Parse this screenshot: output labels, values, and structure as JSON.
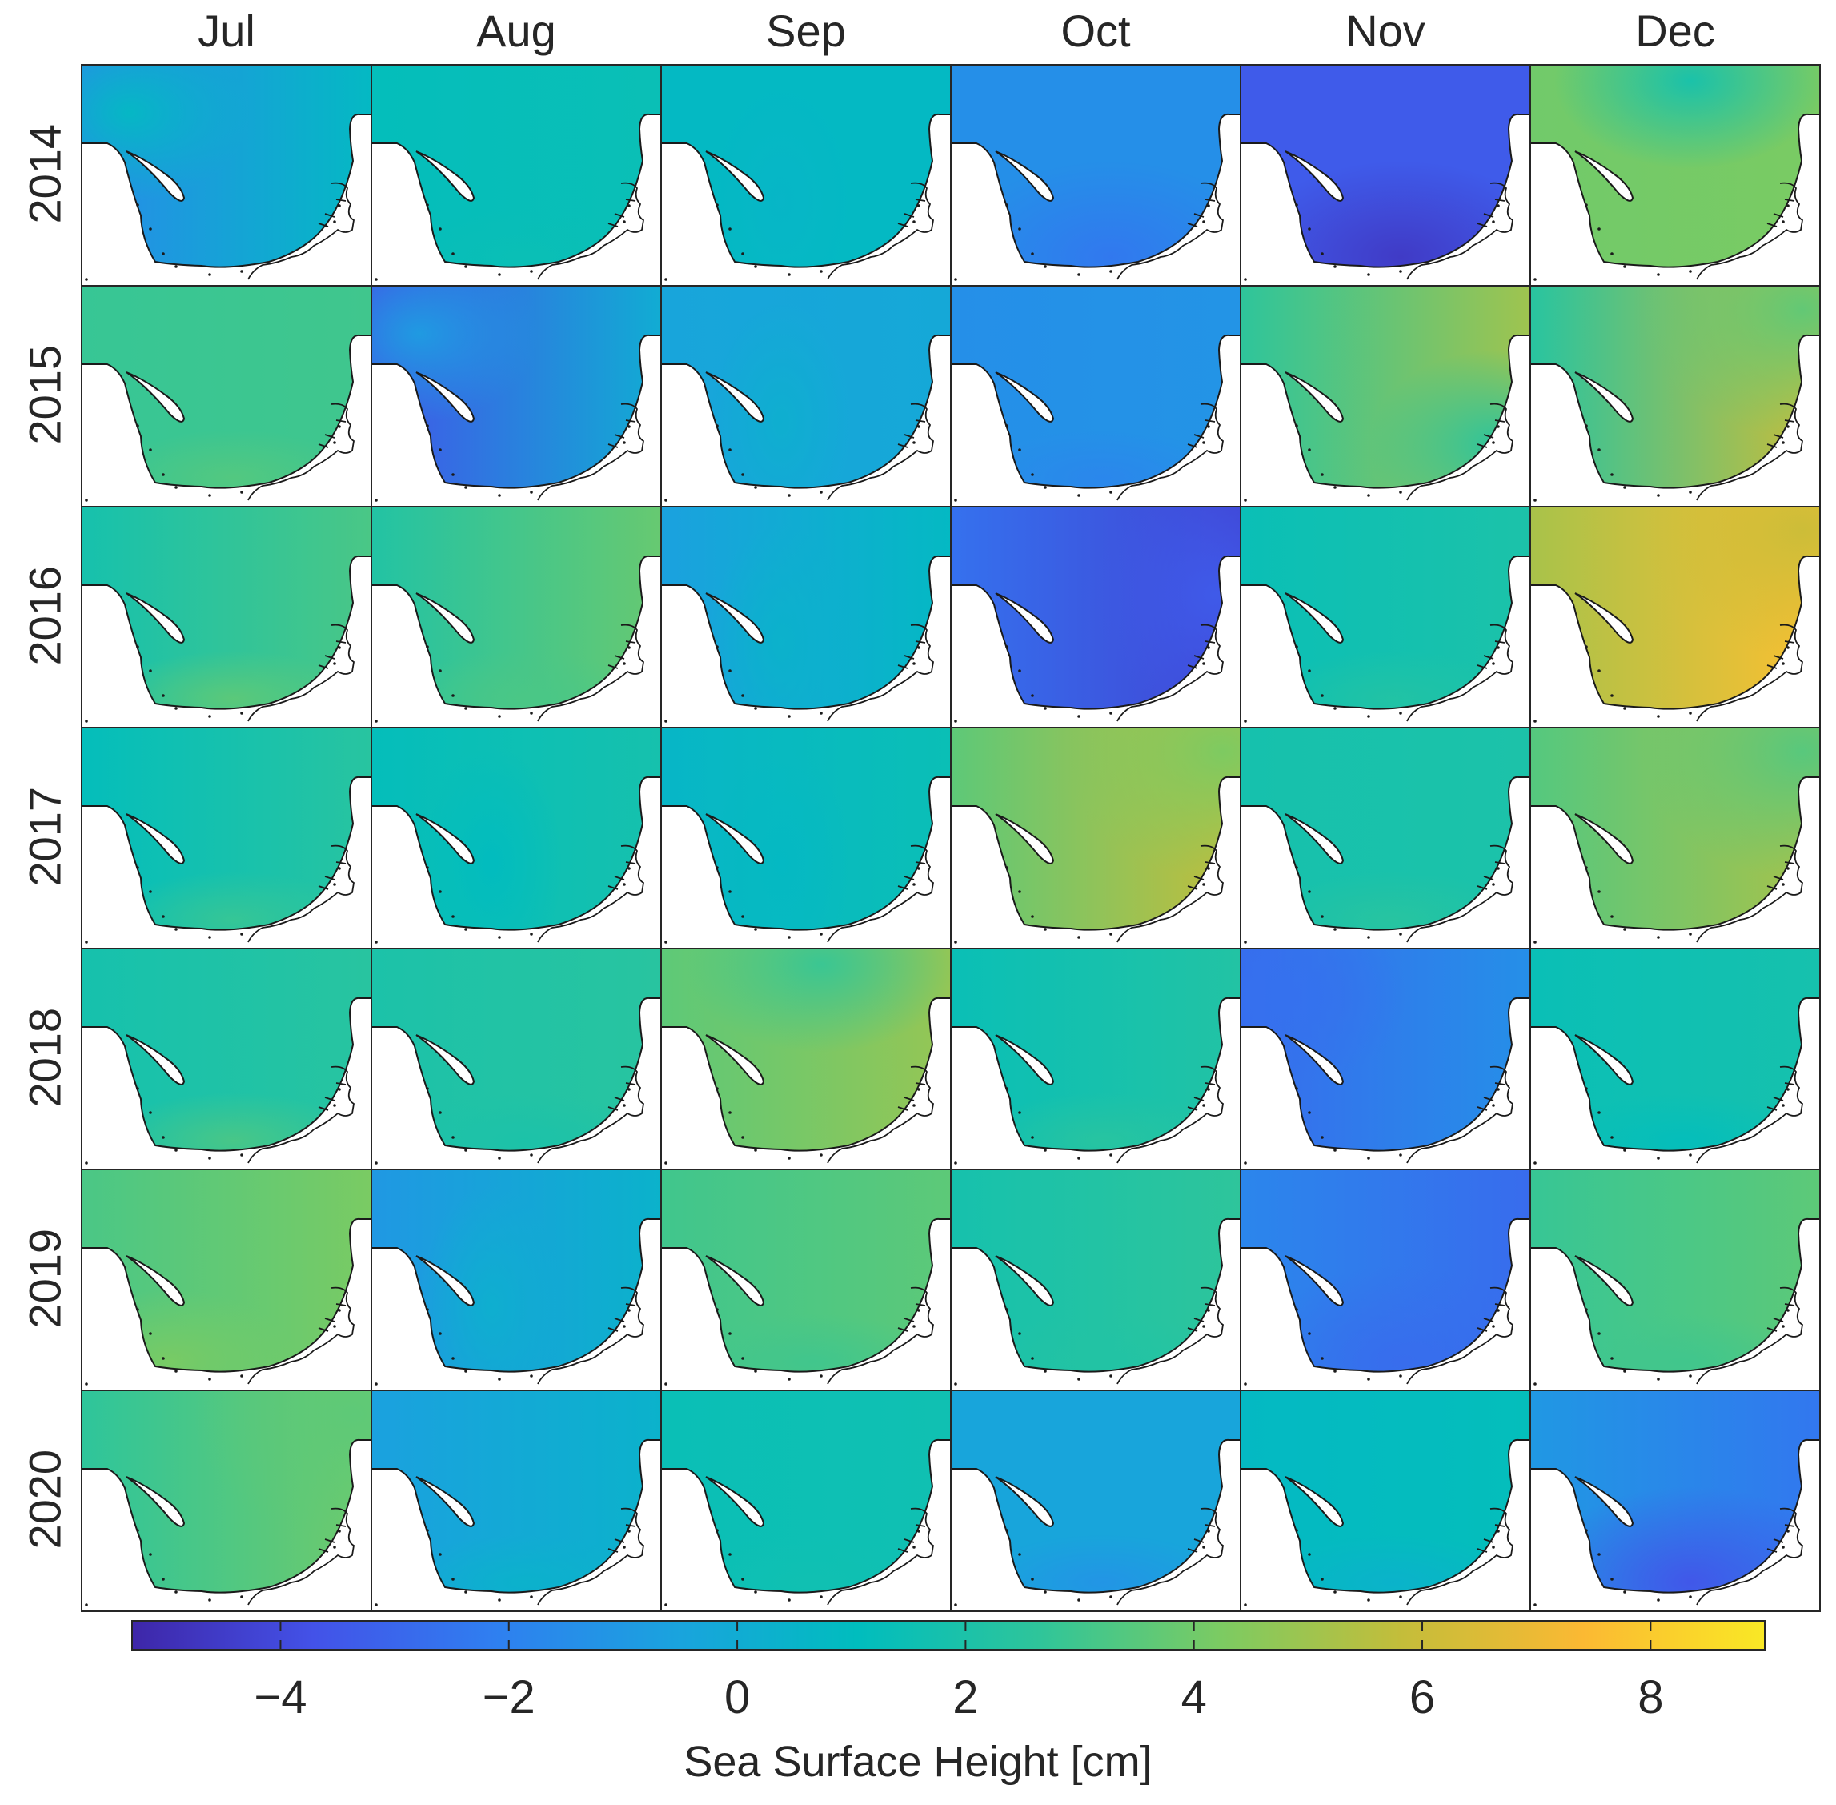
{
  "chart_data": {
    "type": "heatmap",
    "title": "",
    "columns": [
      "Jul",
      "Aug",
      "Sep",
      "Oct",
      "Nov",
      "Dec"
    ],
    "rows": [
      "2014",
      "2015",
      "2016",
      "2017",
      "2018",
      "2019",
      "2020"
    ],
    "panel_content": "Sea surface height map of a coastal bay region, one panel per month and year",
    "colorbar": {
      "label": "Sea Surface Height [cm]",
      "range": [
        -5.3,
        9.0
      ],
      "ticks": [
        -4,
        -2,
        0,
        2,
        4,
        6,
        8
      ],
      "tick_labels": [
        "−4",
        "−2",
        "0",
        "2",
        "4",
        "6",
        "8"
      ],
      "colormap": "parula",
      "stops": [
        "#3e26a8",
        "#4352e8",
        "#2f7ff0",
        "#1aa3de",
        "#00bdbe",
        "#2fc59a",
        "#7ccb62",
        "#c4bd3a",
        "#fbb933",
        "#f9e825"
      ]
    },
    "panels": [
      [
        {
          "w": -1.6,
          "e": 0.8,
          "b": 0.8,
          "p": "NW"
        },
        {
          "w": 1.2,
          "e": 1.4,
          "b": 1.4,
          "p": "flat"
        },
        {
          "w": 0.8,
          "e": 0.8,
          "b": 0.6,
          "p": "trough"
        },
        {
          "w": -1.4,
          "e": -1.4,
          "b": -2.4,
          "p": "S"
        },
        {
          "w": -3.4,
          "e": -3.4,
          "b": -4.6,
          "p": "S"
        },
        {
          "w": 4.0,
          "e": 4.2,
          "b": 1.8,
          "p": "N"
        }
      ],
      [
        {
          "w": 2.8,
          "e": 3.0,
          "b": 3.4,
          "p": "flat"
        },
        {
          "w": -3.6,
          "e": 0.0,
          "b": -0.8,
          "p": "NW"
        },
        {
          "w": -0.4,
          "e": -0.2,
          "b": 0.2,
          "p": "trough"
        },
        {
          "w": -1.4,
          "e": -1.2,
          "b": -1.8,
          "p": "flat"
        },
        {
          "w": 2.6,
          "e": 5.0,
          "b": 2.4,
          "p": "SE"
        },
        {
          "w": 2.4,
          "e": 6.0,
          "b": 3.6,
          "p": "NE"
        }
      ],
      [
        {
          "w": 1.8,
          "e": 3.2,
          "b": 3.6,
          "p": "flat"
        },
        {
          "w": 2.2,
          "e": 3.8,
          "b": 3.2,
          "p": "flat"
        },
        {
          "w": -0.6,
          "e": 0.8,
          "b": 0.4,
          "p": "trough"
        },
        {
          "w": -2.6,
          "e": -4.2,
          "b": -3.4,
          "p": "E"
        },
        {
          "w": 1.4,
          "e": 2.0,
          "b": 2.2,
          "p": "flat"
        },
        {
          "w": 5.2,
          "e": 7.6,
          "b": 6.0,
          "p": "NE"
        }
      ],
      [
        {
          "w": 1.2,
          "e": 2.4,
          "b": 2.8,
          "p": "flat"
        },
        {
          "w": 1.2,
          "e": 1.8,
          "b": 1.0,
          "p": "trough"
        },
        {
          "w": 0.6,
          "e": 1.4,
          "b": 0.8,
          "p": "trough"
        },
        {
          "w": 3.6,
          "e": 5.8,
          "b": 4.2,
          "p": "NE"
        },
        {
          "w": 1.8,
          "e": 2.0,
          "b": 2.4,
          "p": "flat"
        },
        {
          "w": 3.4,
          "e": 5.2,
          "b": 3.4,
          "p": "NE"
        }
      ],
      [
        {
          "w": 1.8,
          "e": 2.4,
          "b": 3.2,
          "p": "flat"
        },
        {
          "w": 2.0,
          "e": 2.4,
          "b": 2.0,
          "p": "flat"
        },
        {
          "w": 3.6,
          "e": 4.8,
          "b": 2.8,
          "p": "N"
        },
        {
          "w": 1.4,
          "e": 2.2,
          "b": 2.4,
          "p": "flat"
        },
        {
          "w": -2.8,
          "e": -1.4,
          "b": -2.6,
          "p": "NW"
        },
        {
          "w": 1.4,
          "e": 1.8,
          "b": 1.2,
          "p": "flat"
        }
      ],
      [
        {
          "w": 3.2,
          "e": 4.2,
          "b": 4.2,
          "p": "SW"
        },
        {
          "w": -1.0,
          "e": 0.4,
          "b": 0.2,
          "p": "trough"
        },
        {
          "w": 3.0,
          "e": 3.6,
          "b": 3.0,
          "p": "flat"
        },
        {
          "w": 1.8,
          "e": 2.6,
          "b": 2.2,
          "p": "flat"
        },
        {
          "w": -1.8,
          "e": -2.8,
          "b": -2.8,
          "p": "S"
        },
        {
          "w": 2.8,
          "e": 3.6,
          "b": 3.0,
          "p": "flat"
        }
      ],
      [
        {
          "w": 2.6,
          "e": 4.0,
          "b": 3.6,
          "p": "NE"
        },
        {
          "w": -0.6,
          "e": 0.4,
          "b": 0.4,
          "p": "flat"
        },
        {
          "w": 1.4,
          "e": 1.6,
          "b": 1.6,
          "p": "flat"
        },
        {
          "w": -0.4,
          "e": -0.4,
          "b": -1.2,
          "p": "flat"
        },
        {
          "w": 0.8,
          "e": 1.2,
          "b": 0.4,
          "p": "flat"
        },
        {
          "w": -1.0,
          "e": -2.4,
          "b": -3.6,
          "p": "S"
        }
      ]
    ]
  }
}
